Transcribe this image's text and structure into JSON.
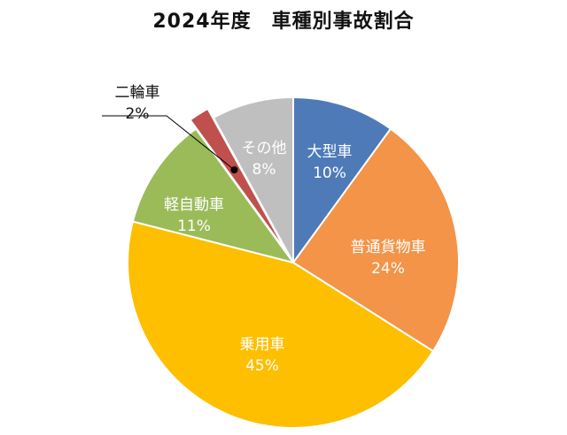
{
  "chart_data": {
    "type": "pie",
    "title": "2024年度　車種別事故割合",
    "slices": [
      {
        "label": "大型車",
        "value": 10,
        "display": "10%",
        "color": "#4e7ab8",
        "text_color": "#ffffff"
      },
      {
        "label": "普通貨物車",
        "value": 24,
        "display": "24%",
        "color": "#f39448",
        "text_color": "#ffffff"
      },
      {
        "label": "乗用車",
        "value": 45,
        "display": "45%",
        "color": "#fdbf00",
        "text_color": "#ffffff"
      },
      {
        "label": "軽自動車",
        "value": 11,
        "display": "11%",
        "color": "#9bbb59",
        "text_color": "#ffffff"
      },
      {
        "label": "二輪車",
        "value": 2,
        "display": "2%",
        "color": "#c0504d",
        "text_color": "#111111"
      },
      {
        "label": "その他",
        "value": 8,
        "display": "8%",
        "color": "#bfbfbf",
        "text_color": "#ffffff"
      }
    ],
    "start_angle": "12 o'clock",
    "direction": "clockwise",
    "legend": "none"
  }
}
